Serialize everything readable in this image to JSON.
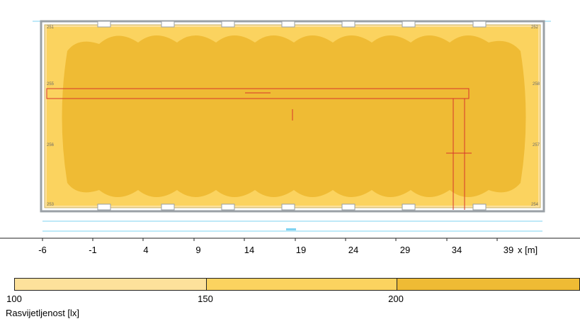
{
  "plan": {
    "colors": {
      "band_100_150": "#fde19b",
      "band_150_200": "#fbd35f",
      "band_200_plus": "#efbb34",
      "room_outline": "#9aa0a6",
      "marker": "#d7342c",
      "dimension": "#7fd3f2"
    },
    "x_axis": {
      "ticks": [
        "-6",
        "-1",
        "4",
        "9",
        "14",
        "19",
        "24",
        "29",
        "34",
        "39"
      ],
      "unit": "x [m]"
    },
    "corner_labels": [
      "251",
      "252",
      "253",
      "254"
    ],
    "side_labels": [
      "255",
      "256",
      "257",
      "258"
    ]
  },
  "legend": {
    "bands": [
      {
        "color": "#fde19b",
        "range": "100-150"
      },
      {
        "color": "#fbd35f",
        "range": "150-200"
      },
      {
        "color": "#efbb34",
        "range": "200+"
      }
    ],
    "ticks": [
      "100",
      "150",
      "200"
    ],
    "title": "Rasvijetljenost [lx]"
  }
}
